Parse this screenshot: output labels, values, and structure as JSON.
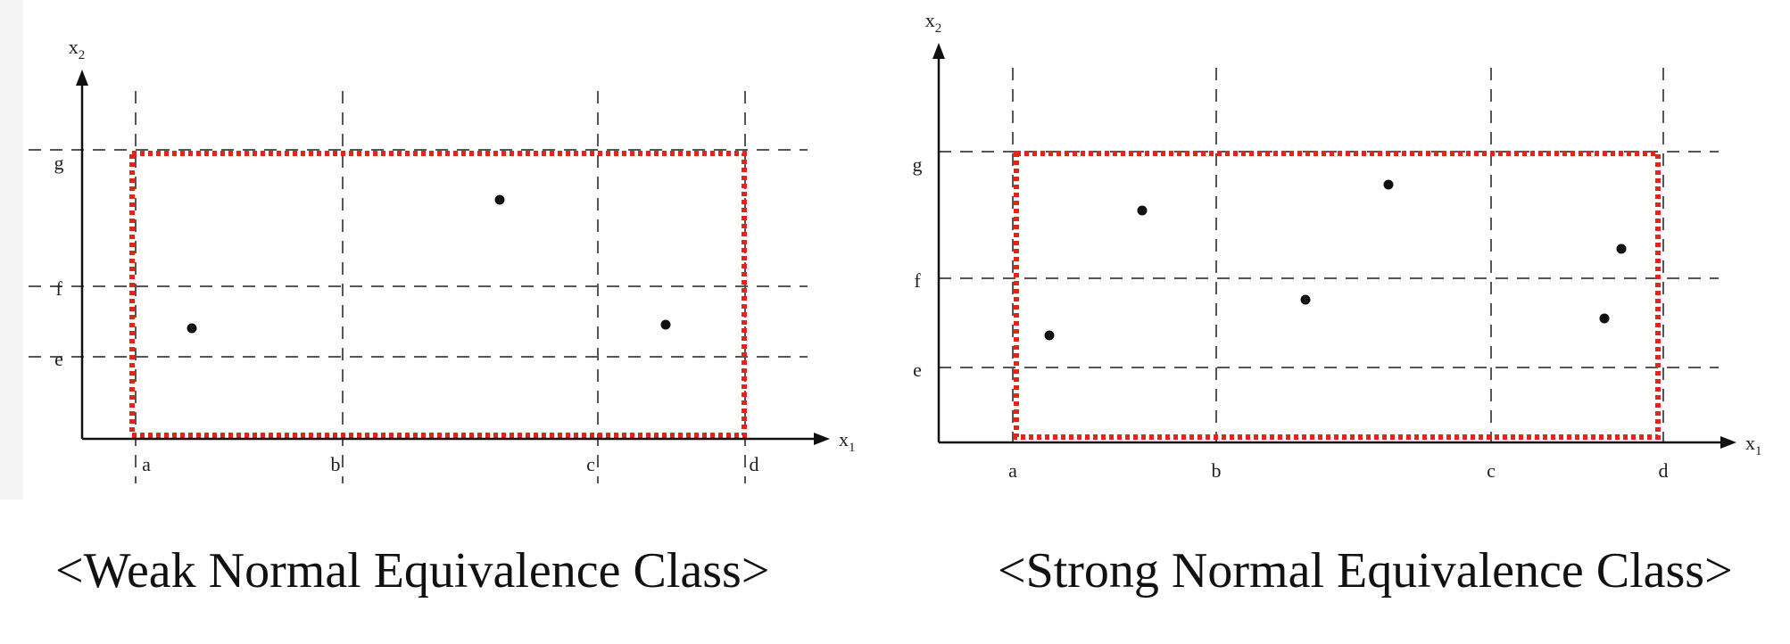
{
  "diagrams": [
    {
      "caption": "<Weak Normal Equivalence Class>",
      "x_axis": "x",
      "x_axis_sub": "1",
      "y_axis": "x",
      "y_axis_sub": "2",
      "x_boundaries": [
        "a",
        "b",
        "c",
        "d"
      ],
      "y_boundaries": [
        "e",
        "f",
        "g"
      ],
      "test_points": [
        {
          "column": "a-b",
          "row": "e-f"
        },
        {
          "column": "b-c",
          "row": "f-g"
        },
        {
          "column": "c-d",
          "row": "e-f"
        }
      ],
      "valid_domain": {
        "x": [
          "a",
          "d"
        ],
        "y": [
          "min",
          "g"
        ]
      }
    },
    {
      "caption": "<Strong Normal Equivalence Class>",
      "x_axis": "x",
      "x_axis_sub": "1",
      "y_axis": "x",
      "y_axis_sub": "2",
      "x_boundaries": [
        "a",
        "b",
        "c",
        "d"
      ],
      "y_boundaries": [
        "e",
        "f",
        "g"
      ],
      "test_points": [
        {
          "column": "a-b",
          "row": "e-f"
        },
        {
          "column": "a-b",
          "row": "f-g"
        },
        {
          "column": "b-c",
          "row": "e-f"
        },
        {
          "column": "b-c",
          "row": "f-g"
        },
        {
          "column": "c-d",
          "row": "e-f"
        },
        {
          "column": "c-d",
          "row": "f-g"
        }
      ],
      "valid_domain": {
        "x": [
          "a",
          "d"
        ],
        "y": [
          "min",
          "g"
        ]
      }
    }
  ],
  "colors": {
    "axis": "#111111",
    "grid": "#555555",
    "domain_border": "#e0261b",
    "point": "#111111",
    "label": "#222222"
  }
}
